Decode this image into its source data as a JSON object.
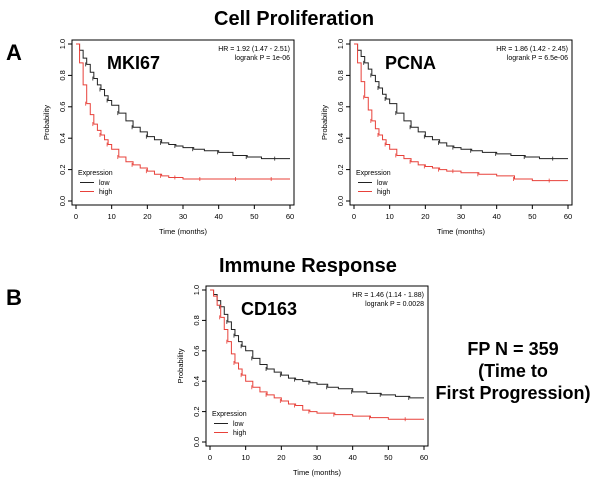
{
  "headings": {
    "cell_proliferation": "Cell Proliferation",
    "immune_response": "Immune Response",
    "panel_a": "A",
    "panel_b": "B"
  },
  "note": {
    "line1": "FP  N = 359",
    "line2": "(Time to",
    "line3": "First Progression)"
  },
  "colors": {
    "low": "#222222",
    "high": "#e8413a",
    "frame": "#000000"
  },
  "chart_data": [
    {
      "type": "line",
      "gene": "MKI67",
      "xlabel": "Time (months)",
      "ylabel": "Probability",
      "xlim": [
        0,
        60
      ],
      "ylim": [
        0,
        1
      ],
      "xticks": [
        "0",
        "10",
        "20",
        "30",
        "40",
        "50",
        "60"
      ],
      "yticks": [
        "0.0",
        "0.2",
        "0.4",
        "0.6",
        "0.8",
        "1.0"
      ],
      "hr_text": "HR = 1.92 (1.47 - 2.51)",
      "p_text": "logrank P = 1e-06",
      "legend_title": "Expression",
      "series": [
        {
          "name": "low",
          "color": "#222222",
          "x": [
            0,
            1,
            2,
            3,
            4,
            5,
            6,
            7,
            8,
            9,
            10,
            12,
            14,
            16,
            18,
            20,
            22,
            24,
            26,
            28,
            30,
            33,
            36,
            40,
            44,
            48,
            52,
            56,
            60
          ],
          "y": [
            1.0,
            0.96,
            0.91,
            0.87,
            0.82,
            0.78,
            0.74,
            0.71,
            0.67,
            0.64,
            0.61,
            0.56,
            0.51,
            0.47,
            0.44,
            0.41,
            0.39,
            0.37,
            0.36,
            0.35,
            0.34,
            0.33,
            0.32,
            0.31,
            0.29,
            0.28,
            0.27,
            0.27,
            0.27
          ]
        },
        {
          "name": "high",
          "color": "#e8413a",
          "x": [
            0,
            1,
            2,
            3,
            4,
            5,
            6,
            7,
            8,
            9,
            10,
            12,
            14,
            16,
            18,
            20,
            22,
            24,
            26,
            28,
            30,
            35,
            40,
            45,
            50,
            55,
            60
          ],
          "y": [
            1.0,
            0.88,
            0.74,
            0.62,
            0.55,
            0.49,
            0.45,
            0.42,
            0.39,
            0.36,
            0.33,
            0.28,
            0.25,
            0.23,
            0.21,
            0.19,
            0.17,
            0.16,
            0.15,
            0.15,
            0.14,
            0.14,
            0.14,
            0.14,
            0.14,
            0.14,
            0.14
          ]
        }
      ]
    },
    {
      "type": "line",
      "gene": "PCNA",
      "xlabel": "Time (months)",
      "ylabel": "Probability",
      "xlim": [
        0,
        60
      ],
      "ylim": [
        0,
        1
      ],
      "xticks": [
        "0",
        "10",
        "20",
        "30",
        "40",
        "50",
        "60"
      ],
      "yticks": [
        "0.0",
        "0.2",
        "0.4",
        "0.6",
        "0.8",
        "1.0"
      ],
      "hr_text": "HR = 1.86 (1.42 - 2.45)",
      "p_text": "logrank P = 6.5e-06",
      "legend_title": "Expression",
      "series": [
        {
          "name": "low",
          "color": "#222222",
          "x": [
            0,
            1,
            2,
            3,
            4,
            5,
            6,
            7,
            8,
            9,
            10,
            12,
            14,
            16,
            18,
            20,
            22,
            24,
            26,
            28,
            30,
            33,
            36,
            40,
            44,
            48,
            52,
            56,
            60
          ],
          "y": [
            1.0,
            0.96,
            0.92,
            0.88,
            0.84,
            0.8,
            0.76,
            0.72,
            0.68,
            0.65,
            0.62,
            0.56,
            0.51,
            0.47,
            0.44,
            0.41,
            0.39,
            0.37,
            0.35,
            0.34,
            0.33,
            0.32,
            0.31,
            0.3,
            0.29,
            0.28,
            0.27,
            0.27,
            0.27
          ]
        },
        {
          "name": "high",
          "color": "#e8413a",
          "x": [
            0,
            1,
            2,
            3,
            4,
            5,
            6,
            7,
            8,
            9,
            10,
            12,
            14,
            16,
            18,
            20,
            22,
            24,
            26,
            28,
            30,
            35,
            40,
            45,
            50,
            55,
            60
          ],
          "y": [
            1.0,
            0.88,
            0.76,
            0.66,
            0.58,
            0.51,
            0.46,
            0.42,
            0.39,
            0.36,
            0.33,
            0.29,
            0.27,
            0.25,
            0.23,
            0.22,
            0.21,
            0.2,
            0.19,
            0.19,
            0.18,
            0.17,
            0.16,
            0.14,
            0.13,
            0.13,
            0.13
          ]
        }
      ]
    },
    {
      "type": "line",
      "gene": "CD163",
      "xlabel": "Time (months)",
      "ylabel": "Probability",
      "xlim": [
        0,
        60
      ],
      "ylim": [
        0,
        1
      ],
      "xticks": [
        "0",
        "10",
        "20",
        "30",
        "40",
        "50",
        "60"
      ],
      "yticks": [
        "0.0",
        "0.2",
        "0.4",
        "0.6",
        "0.8",
        "1.0"
      ],
      "hr_text": "HR = 1.46 (1.14 - 1.88)",
      "p_text": "logrank P = 0.0028",
      "legend_title": "Expression",
      "series": [
        {
          "name": "low",
          "color": "#222222",
          "x": [
            0,
            1,
            2,
            3,
            4,
            5,
            6,
            7,
            8,
            9,
            10,
            12,
            14,
            16,
            18,
            20,
            22,
            24,
            26,
            28,
            30,
            33,
            36,
            40,
            44,
            48,
            52,
            56,
            60
          ],
          "y": [
            1.0,
            0.97,
            0.93,
            0.89,
            0.84,
            0.79,
            0.74,
            0.7,
            0.66,
            0.63,
            0.6,
            0.55,
            0.51,
            0.48,
            0.46,
            0.44,
            0.42,
            0.41,
            0.4,
            0.39,
            0.38,
            0.36,
            0.35,
            0.33,
            0.32,
            0.31,
            0.3,
            0.29,
            0.29
          ]
        },
        {
          "name": "high",
          "color": "#e8413a",
          "x": [
            0,
            1,
            2,
            3,
            4,
            5,
            6,
            7,
            8,
            9,
            10,
            12,
            14,
            16,
            18,
            20,
            22,
            24,
            26,
            28,
            30,
            35,
            40,
            45,
            50,
            55,
            60
          ],
          "y": [
            1.0,
            0.96,
            0.9,
            0.82,
            0.74,
            0.66,
            0.58,
            0.52,
            0.48,
            0.44,
            0.4,
            0.36,
            0.33,
            0.31,
            0.29,
            0.27,
            0.25,
            0.24,
            0.21,
            0.2,
            0.19,
            0.18,
            0.17,
            0.16,
            0.15,
            0.15,
            0.15
          ]
        }
      ]
    }
  ]
}
